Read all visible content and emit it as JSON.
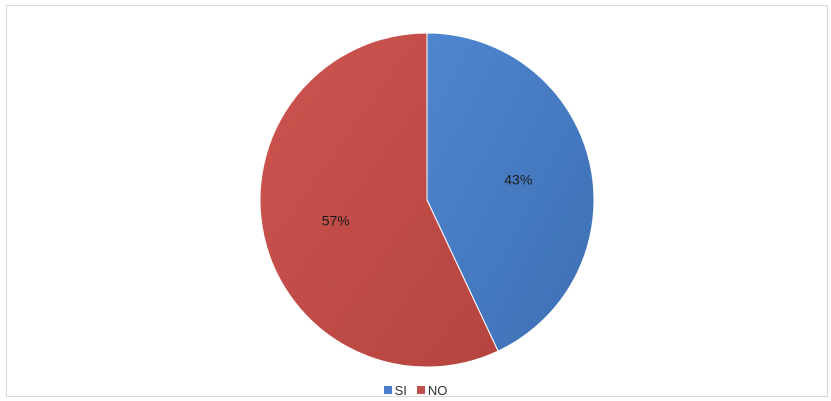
{
  "chart_data": {
    "type": "pie",
    "categories": [
      "SI",
      "NO"
    ],
    "values": [
      43,
      57
    ],
    "labels": [
      "43%",
      "57%"
    ],
    "colors": [
      "#4a7fc9",
      "#c0504d"
    ],
    "title": "",
    "legend_position": "bottom"
  }
}
